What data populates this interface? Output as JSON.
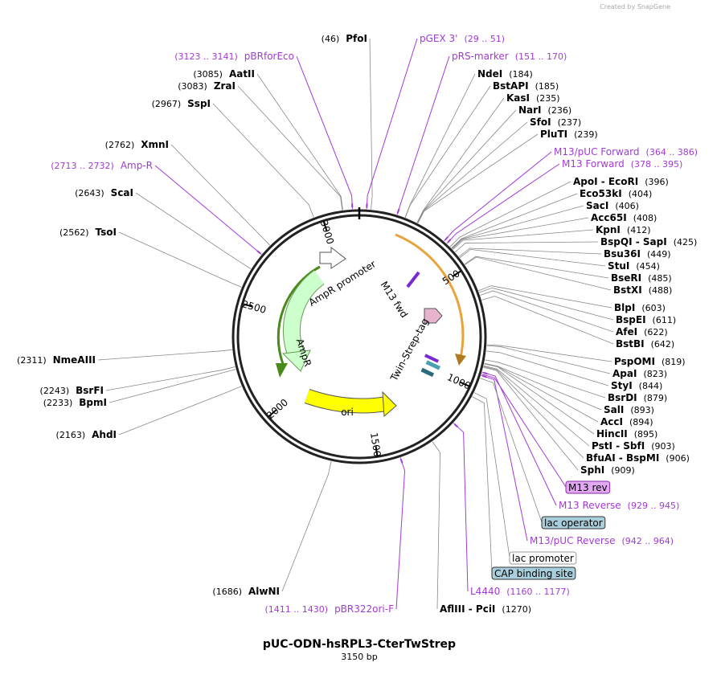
{
  "watermark": "Created by SnapGene",
  "title": "pUC-ODN-hsRPL3-CterTwStrep",
  "subtitle": "3150 bp",
  "map": {
    "ticks": [
      500,
      1000,
      1500,
      2000,
      2500,
      3000
    ],
    "features": [
      "AmpR promoter",
      "AmpR",
      "ori",
      "M13 fwd",
      "Twin-Strep-tag"
    ]
  },
  "sites": [
    {
      "name": "PfoI",
      "position": "(46)"
    },
    {
      "name": "NdeI",
      "position": "(184)"
    },
    {
      "name": "BstAPI",
      "position": "(185)"
    },
    {
      "name": "KasI",
      "position": "(235)"
    },
    {
      "name": "NarI",
      "position": "(236)"
    },
    {
      "name": "SfoI",
      "position": "(237)"
    },
    {
      "name": "PluTI",
      "position": "(239)"
    },
    {
      "name": "ApoI - EcoRI",
      "position": "(396)"
    },
    {
      "name": "Eco53kI",
      "position": "(404)"
    },
    {
      "name": "SacI",
      "position": "(406)"
    },
    {
      "name": "Acc65I",
      "position": "(408)"
    },
    {
      "name": "KpnI",
      "position": "(412)"
    },
    {
      "name": "BspQI - SapI",
      "position": "(425)"
    },
    {
      "name": "Bsu36I",
      "position": "(449)"
    },
    {
      "name": "StuI",
      "position": "(454)"
    },
    {
      "name": "BseRI",
      "position": "(485)"
    },
    {
      "name": "BstXI",
      "position": "(488)"
    },
    {
      "name": "BlpI",
      "position": "(603)"
    },
    {
      "name": "BspEI",
      "position": "(611)"
    },
    {
      "name": "AfeI",
      "position": "(622)"
    },
    {
      "name": "BstBI",
      "position": "(642)"
    },
    {
      "name": "PspOMI",
      "position": "(819)"
    },
    {
      "name": "ApaI",
      "position": "(823)"
    },
    {
      "name": "StyI",
      "position": "(844)"
    },
    {
      "name": "BsrDI",
      "position": "(879)"
    },
    {
      "name": "SalI",
      "position": "(893)"
    },
    {
      "name": "AccI",
      "position": "(894)"
    },
    {
      "name": "HincII",
      "position": "(895)"
    },
    {
      "name": "PstI - SbfI",
      "position": "(903)"
    },
    {
      "name": "BfuAI - BspMI",
      "position": "(906)"
    },
    {
      "name": "SphI",
      "position": "(909)"
    },
    {
      "name": "AflIII - PciI",
      "position": "(1270)"
    },
    {
      "name": "AlwNI",
      "position": "(1686)"
    },
    {
      "name": "AhdI",
      "position": "(2163)"
    },
    {
      "name": "BpmI",
      "position": "(2233)"
    },
    {
      "name": "BsrFI",
      "position": "(2243)"
    },
    {
      "name": "NmeAIII",
      "position": "(2311)"
    },
    {
      "name": "TsoI",
      "position": "(2562)"
    },
    {
      "name": "ScaI",
      "position": "(2643)"
    },
    {
      "name": "XmnI",
      "position": "(2762)"
    },
    {
      "name": "SspI",
      "position": "(2967)"
    },
    {
      "name": "ZraI",
      "position": "(3083)"
    },
    {
      "name": "AatII",
      "position": "(3085)"
    }
  ],
  "primers": [
    {
      "name": "pGEX 3'",
      "range": "(29 .. 51)"
    },
    {
      "name": "pRS-marker",
      "range": "(151 .. 170)"
    },
    {
      "name": "M13/pUC Forward",
      "range": "(364 .. 386)"
    },
    {
      "name": "M13 Forward",
      "range": "(378 .. 395)"
    },
    {
      "name": "M13 Reverse",
      "range": "(929 .. 945)"
    },
    {
      "name": "M13/pUC Reverse",
      "range": "(942 .. 964)"
    },
    {
      "name": "L4440",
      "range": "(1160 .. 1177)"
    },
    {
      "name": "pBR322ori-F",
      "range": "(1411 .. 1430)"
    },
    {
      "name": "Amp-R",
      "range": "(2713 .. 2732)"
    },
    {
      "name": "pBRforEco",
      "range": "(3123 .. 3141)"
    }
  ],
  "boxed": [
    {
      "name": "M13 rev"
    },
    {
      "name": "lac operator"
    },
    {
      "name": "lac promoter"
    },
    {
      "name": "CAP binding site"
    }
  ]
}
